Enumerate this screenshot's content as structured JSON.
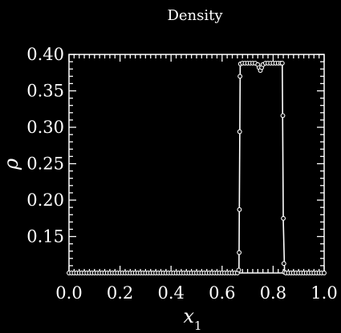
{
  "chart_data": {
    "type": "line",
    "title": "Density",
    "xlabel": "x",
    "xlabel_sub": "1",
    "ylabel": "ρ",
    "xlim": [
      0.0,
      1.0
    ],
    "ylim": [
      0.1,
      0.4
    ],
    "xticks": [
      0.0,
      0.2,
      0.4,
      0.6,
      0.8,
      1.0
    ],
    "xtick_labels": [
      "0.0",
      "0.2",
      "0.4",
      "0.6",
      "0.8",
      "1.0"
    ],
    "yticks": [
      0.15,
      0.2,
      0.25,
      0.3,
      0.35,
      0.4
    ],
    "ytick_labels": [
      "0.15",
      "0.20",
      "0.25",
      "0.30",
      "0.35",
      "0.40"
    ],
    "grid": false,
    "colors": {
      "background": "#000000",
      "foreground": "#ffffff"
    },
    "series": [
      {
        "style": "line",
        "x": [
          0.0,
          0.66,
          0.666,
          0.671,
          0.7,
          0.73,
          0.74,
          0.745,
          0.75,
          0.755,
          0.76,
          0.77,
          0.8,
          0.83,
          0.836,
          0.84,
          0.845,
          1.0
        ],
        "y": [
          0.1,
          0.1,
          0.1,
          0.387,
          0.388,
          0.388,
          0.386,
          0.382,
          0.378,
          0.382,
          0.386,
          0.388,
          0.388,
          0.388,
          0.388,
          0.17,
          0.1,
          0.1
        ]
      },
      {
        "style": "markers",
        "x": [
          0.0,
          0.01,
          0.02,
          0.03,
          0.04,
          0.05,
          0.06,
          0.07,
          0.08,
          0.09,
          0.1,
          0.11,
          0.12,
          0.13,
          0.14,
          0.15,
          0.16,
          0.17,
          0.18,
          0.19,
          0.2,
          0.21,
          0.22,
          0.23,
          0.24,
          0.25,
          0.26,
          0.27,
          0.28,
          0.29,
          0.3,
          0.31,
          0.32,
          0.33,
          0.34,
          0.35,
          0.36,
          0.37,
          0.38,
          0.39,
          0.4,
          0.41,
          0.42,
          0.43,
          0.44,
          0.45,
          0.46,
          0.47,
          0.48,
          0.49,
          0.5,
          0.51,
          0.52,
          0.53,
          0.54,
          0.55,
          0.56,
          0.57,
          0.58,
          0.59,
          0.6,
          0.61,
          0.62,
          0.63,
          0.64,
          0.65,
          0.66,
          0.665,
          0.667,
          0.668,
          0.669,
          0.67,
          0.672,
          0.68,
          0.69,
          0.7,
          0.71,
          0.72,
          0.73,
          0.74,
          0.745,
          0.75,
          0.755,
          0.76,
          0.77,
          0.78,
          0.79,
          0.8,
          0.81,
          0.82,
          0.83,
          0.836,
          0.838,
          0.84,
          0.842,
          0.844,
          0.85,
          0.86,
          0.87,
          0.88,
          0.89,
          0.9,
          0.91,
          0.92,
          0.93,
          0.94,
          0.95,
          0.96,
          0.97,
          0.98,
          0.99,
          1.0
        ],
        "y": [
          0.1,
          0.1,
          0.1,
          0.1,
          0.1,
          0.1,
          0.1,
          0.1,
          0.1,
          0.1,
          0.1,
          0.1,
          0.1,
          0.1,
          0.1,
          0.1,
          0.1,
          0.1,
          0.1,
          0.1,
          0.1,
          0.1,
          0.1,
          0.1,
          0.1,
          0.1,
          0.1,
          0.1,
          0.1,
          0.1,
          0.1,
          0.1,
          0.1,
          0.1,
          0.1,
          0.1,
          0.1,
          0.1,
          0.1,
          0.1,
          0.1,
          0.1,
          0.1,
          0.1,
          0.1,
          0.1,
          0.1,
          0.1,
          0.1,
          0.1,
          0.1,
          0.1,
          0.1,
          0.1,
          0.1,
          0.1,
          0.1,
          0.1,
          0.1,
          0.1,
          0.1,
          0.1,
          0.1,
          0.1,
          0.1,
          0.1,
          0.1,
          0.104,
          0.128,
          0.187,
          0.294,
          0.37,
          0.387,
          0.388,
          0.388,
          0.388,
          0.388,
          0.388,
          0.388,
          0.386,
          0.382,
          0.378,
          0.382,
          0.386,
          0.388,
          0.388,
          0.388,
          0.388,
          0.388,
          0.388,
          0.388,
          0.388,
          0.316,
          0.175,
          0.113,
          0.101,
          0.1,
          0.1,
          0.1,
          0.1,
          0.1,
          0.1,
          0.1,
          0.1,
          0.1,
          0.1,
          0.1,
          0.1,
          0.1,
          0.1,
          0.1,
          0.1
        ]
      }
    ]
  }
}
